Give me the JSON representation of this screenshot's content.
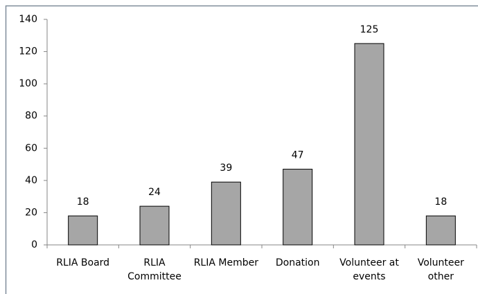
{
  "chart_data": {
    "type": "bar",
    "categories": [
      "RLIA Board",
      "RLIA Committee",
      "RLIA Member",
      "Donation",
      "Volunteer at events",
      "Volunteer other"
    ],
    "values": [
      18,
      24,
      39,
      47,
      125,
      18
    ],
    "color": "#a6a6a6",
    "ylim": [
      0,
      140
    ],
    "yticks": [
      0,
      20,
      40,
      60,
      80,
      100,
      120,
      140
    ],
    "grid": false
  }
}
